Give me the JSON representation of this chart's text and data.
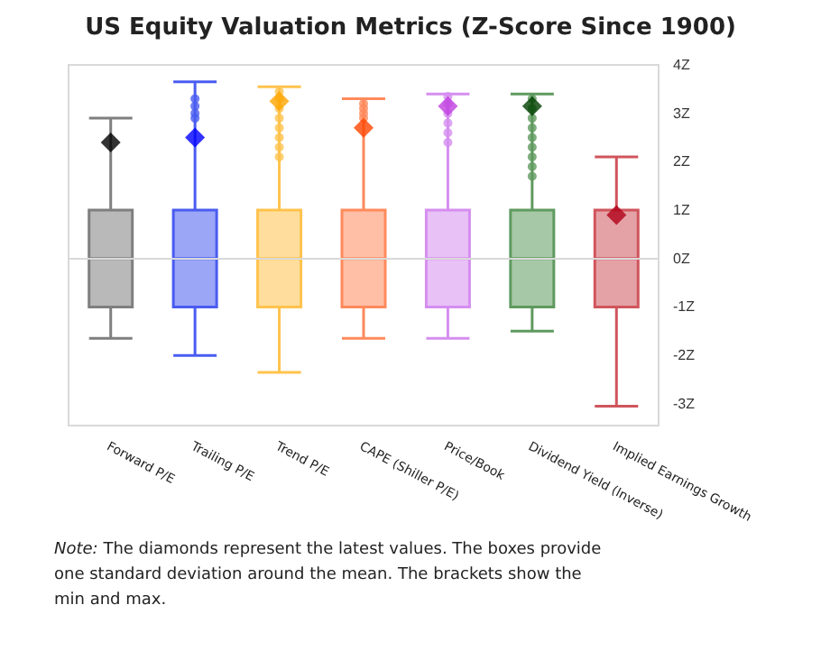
{
  "chart_data": {
    "type": "box",
    "title": "US Equity Valuation Metrics (Z-Score Since 1900)",
    "categories": [
      "Forward P/E",
      "Trailing P/E",
      "Trend P/E",
      "CAPE (Shiller P/E)",
      "Price/Book",
      "Dividend Yield (Inverse)",
      "Implied Earnings Growth"
    ],
    "series": [
      {
        "colors": [
          "#7f7f7f",
          "#4a5cf0",
          "#ffc34d",
          "#ff8a5c",
          "#d58ef0",
          "#5f9a5f",
          "#d0555c"
        ],
        "boxes": [
          {
            "low": -1.65,
            "q1": -1,
            "median": 0,
            "q3": 1,
            "high": 2.9
          },
          {
            "low": -2.0,
            "q1": -1,
            "median": 0,
            "q3": 1,
            "high": 3.65,
            "outliers": [
              2.9,
              3.0,
              3.15,
              3.3
            ]
          },
          {
            "low": -2.35,
            "q1": -1,
            "median": 0,
            "q3": 1,
            "high": 3.55,
            "outliers": [
              2.1,
              2.3,
              2.5,
              2.7,
              2.9,
              3.1,
              3.3,
              3.45
            ]
          },
          {
            "low": -1.65,
            "q1": -1,
            "median": 0,
            "q3": 1,
            "high": 3.3,
            "outliers": [
              2.9,
              3.0,
              3.1,
              3.2
            ]
          },
          {
            "low": -1.65,
            "q1": -1,
            "median": 0,
            "q3": 1,
            "high": 3.4,
            "outliers": [
              2.4,
              2.6,
              2.8,
              3.0,
              3.2,
              3.35
            ]
          },
          {
            "low": -1.5,
            "q1": -1,
            "median": 0,
            "q3": 1,
            "high": 3.4,
            "outliers": [
              1.7,
              1.9,
              2.1,
              2.3,
              2.5,
              2.7,
              2.9,
              3.1,
              3.3
            ]
          },
          {
            "low": -3.05,
            "q1": -1,
            "median": 0,
            "q3": 1,
            "high": 2.1
          }
        ]
      },
      {
        "type": "scatter",
        "marker": "diamond",
        "x": [
          "Forward P/E",
          "Trailing P/E",
          "Trend P/E",
          "CAPE (Shiller P/E)",
          "Price/Book",
          "Dividend Yield (Inverse)",
          "Implied Earnings Growth"
        ],
        "values": [
          2.4,
          2.5,
          3.25,
          2.7,
          3.15,
          3.15,
          0.9
        ],
        "colors": [
          "#000000",
          "#0000ff",
          "#ffa500",
          "#ff4500",
          "#c040e0",
          "#004000",
          "#b00018"
        ]
      }
    ],
    "ylim": [
      -3.45,
      4
    ],
    "yticks": [
      {
        "value": 4,
        "label": "4Z"
      },
      {
        "value": 3,
        "label": "3Z"
      },
      {
        "value": 2,
        "label": "2Z"
      },
      {
        "value": 1,
        "label": "1Z"
      },
      {
        "value": 0,
        "label": "0Z"
      },
      {
        "value": -1,
        "label": "-1Z"
      },
      {
        "value": -2,
        "label": "-2Z"
      },
      {
        "value": -3,
        "label": "-3Z"
      }
    ],
    "ref_lines": [
      {
        "axis": "y",
        "value": 0,
        "color": "#d9d9d9"
      }
    ],
    "grid": false,
    "annotations": [
      "Note: The diamonds represent the latest values. The boxes provide one standard deviation around the mean. The brackets show the min and max."
    ]
  }
}
